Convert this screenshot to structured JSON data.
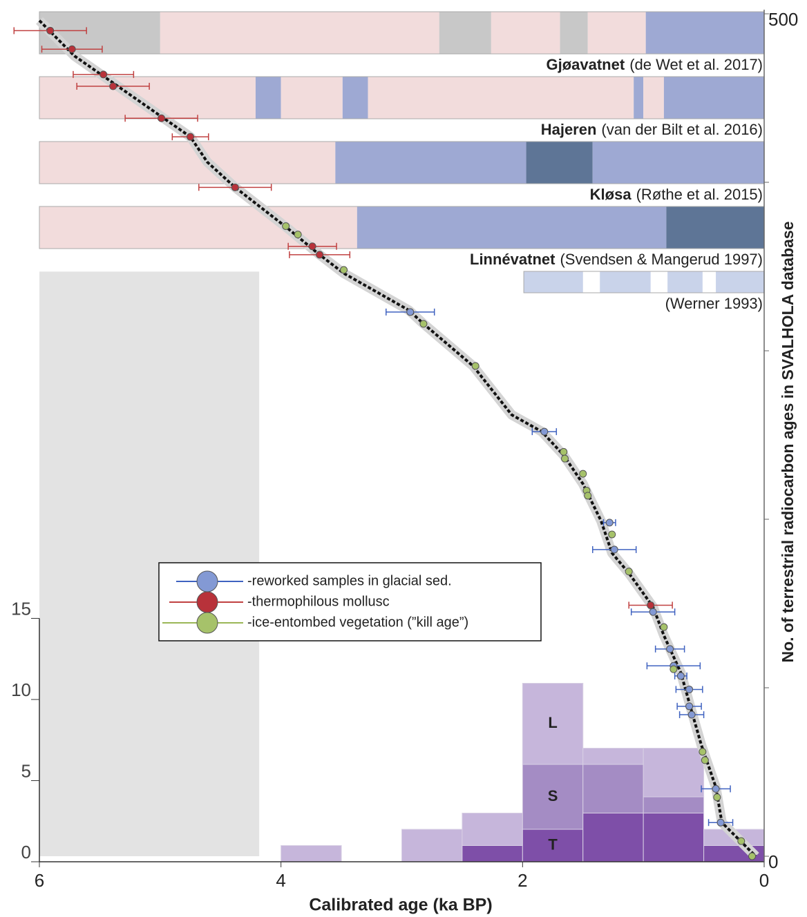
{
  "chart_data": {
    "type": "histogram",
    "xlabel": "Calibrated age (ka BP)",
    "y2label": "No. of terrestrial radiocarbon ages in SVALHOLA database",
    "xlim": [
      6,
      0
    ],
    "xticks": [
      6,
      4,
      2,
      0
    ],
    "ylim": [
      0,
      15
    ],
    "yticks": [
      0,
      5,
      10,
      15
    ],
    "y2lim": [
      0,
      500
    ],
    "y2ticks": [
      0,
      500
    ],
    "y2minor_ticks": [
      100,
      200,
      300,
      400
    ],
    "bins": [
      4,
      3.5,
      3,
      2.5,
      2,
      1.5,
      1,
      0.5,
      0
    ],
    "series": [
      {
        "name": "T",
        "color": "#7e4fa8",
        "values": [
          0,
          0,
          0,
          1,
          2,
          3,
          3,
          1
        ]
      },
      {
        "name": "S",
        "color": "#a48cc4",
        "values": [
          0,
          0,
          0,
          0,
          4,
          3,
          1,
          0
        ]
      },
      {
        "name": "L",
        "color": "#c6b6db",
        "values": [
          1,
          0,
          2,
          2,
          5,
          1,
          3,
          1
        ]
      }
    ],
    "shaded_region": {
      "x": [
        6,
        4.18
      ],
      "y2": [
        0,
        347
      ],
      "color": "#e3e3e3"
    },
    "overlays": [
      {
        "type": "line",
        "axis": "y2",
        "color": "#111",
        "x": [
          6.0,
          5.71,
          5.47,
          4.99,
          4.75,
          4.61,
          4.38,
          3.95,
          3.68,
          3.48,
          2.94,
          2.82,
          2.41,
          2.09,
          1.84,
          1.66,
          1.5,
          1.35,
          1.26,
          1.12,
          0.92,
          0.83,
          0.69,
          0.6,
          0.52,
          0.4,
          0.35,
          0.07
        ],
        "y": [
          496,
          475,
          463,
          439,
          427,
          412,
          397,
          373,
          357,
          346,
          324,
          316,
          291,
          262,
          252,
          238,
          221,
          199,
          180,
          168,
          148,
          131,
          109,
          86,
          66,
          41,
          20,
          0
        ]
      },
      {
        "type": "scatter",
        "axis": "y2",
        "name": "-reworked samples in glacial sed.",
        "color": "#8399d4",
        "error_color": "#3f62c0",
        "x": [
          2.93,
          1.82,
          1.28,
          1.24,
          0.92,
          0.78,
          0.75,
          0.69,
          0.62,
          0.62,
          0.6,
          0.4,
          0.36
        ],
        "y": [
          323,
          252,
          198,
          182,
          145,
          123,
          113,
          107,
          99,
          89,
          84,
          40,
          20
        ],
        "errors": [
          0.2,
          0.1,
          0.05,
          0.18,
          0.18,
          0.12,
          0.22,
          0.05,
          0.11,
          0.1,
          0.1,
          0.12,
          0.1
        ]
      },
      {
        "type": "scatter",
        "axis": "y2",
        "name": "-thermophilous mollusc",
        "color": "#b8323a",
        "error_color": "#c04040",
        "x": [
          5.91,
          5.73,
          5.47,
          5.39,
          4.99,
          4.75,
          4.38,
          3.74,
          3.68,
          0.94
        ],
        "y": [
          490,
          479,
          464,
          457,
          438,
          427,
          397,
          362,
          357,
          149
        ],
        "errors": [
          0.3,
          0.25,
          0.25,
          0.3,
          0.3,
          0.15,
          0.3,
          0.2,
          0.25,
          0.18
        ]
      },
      {
        "type": "scatter",
        "axis": "y2",
        "name": "-ice-entombed vegetation (”kill age”)",
        "color": "#a6c26a",
        "error_color": "#9ab655",
        "x": [
          3.96,
          3.86,
          3.48,
          2.82,
          2.39,
          1.66,
          1.65,
          1.5,
          1.47,
          1.46,
          1.26,
          1.12,
          0.83,
          0.75,
          0.51,
          0.49,
          0.39,
          0.19,
          0.1
        ],
        "y": [
          374,
          369,
          348,
          316,
          291,
          240,
          236,
          227,
          217,
          214,
          191,
          169,
          136,
          111,
          62,
          57,
          35,
          9,
          0
        ]
      }
    ],
    "records": [
      {
        "name": "Gjøavatnet",
        "citation": "(de Wet et al. 2017)",
        "segments": [
          {
            "from": 6,
            "to": 5.0,
            "color": "#c8c8c8"
          },
          {
            "from": 5.0,
            "to": 2.69,
            "color": "#f2dcdc"
          },
          {
            "from": 2.69,
            "to": 2.26,
            "color": "#c8c8c8"
          },
          {
            "from": 2.26,
            "to": 1.69,
            "color": "#f2dcdc"
          },
          {
            "from": 1.69,
            "to": 1.46,
            "color": "#c8c8c8"
          },
          {
            "from": 1.46,
            "to": 0.98,
            "color": "#f2dcdc"
          },
          {
            "from": 0.98,
            "to": 0,
            "color": "#9ea9d3"
          }
        ]
      },
      {
        "name": "Hajeren",
        "citation": "(van der Bilt et al. 2016)",
        "segments": [
          {
            "from": 6,
            "to": 4.21,
            "color": "#f2dcdc"
          },
          {
            "from": 4.21,
            "to": 4.0,
            "color": "#9ea9d3"
          },
          {
            "from": 4.0,
            "to": 3.49,
            "color": "#f2dcdc"
          },
          {
            "from": 3.49,
            "to": 3.28,
            "color": "#9ea9d3"
          },
          {
            "from": 3.28,
            "to": 1.08,
            "color": "#f2dcdc"
          },
          {
            "from": 1.08,
            "to": 1.0,
            "color": "#9ea9d3"
          },
          {
            "from": 1.0,
            "to": 0.83,
            "color": "#f2dcdc"
          },
          {
            "from": 0.83,
            "to": 0,
            "color": "#9ea9d3"
          }
        ]
      },
      {
        "name": "Kløsa",
        "citation": "(Røthe et al. 2015)",
        "segments": [
          {
            "from": 6,
            "to": 3.55,
            "color": "#f2dcdc"
          },
          {
            "from": 3.55,
            "to": 1.97,
            "color": "#9ea9d3"
          },
          {
            "from": 1.97,
            "to": 1.42,
            "color": "#5e7596"
          },
          {
            "from": 1.42,
            "to": 0,
            "color": "#9ea9d3"
          }
        ]
      },
      {
        "name": "Linnévatnet",
        "citation": "(Svendsen & Mangerud 1997)",
        "segments": [
          {
            "from": 6,
            "to": 3.37,
            "color": "#f2dcdc"
          },
          {
            "from": 3.37,
            "to": 0.81,
            "color": "#9ea9d3"
          },
          {
            "from": 0.81,
            "to": 0,
            "color": "#5e7596"
          }
        ]
      },
      {
        "citation": "(Werner 1993)",
        "segments": [
          {
            "from": 1.99,
            "to": 1.5,
            "color": "#c9d3ea"
          },
          {
            "from": 1.36,
            "to": 0.94,
            "color": "#c9d3ea"
          },
          {
            "from": 0.8,
            "to": 0.51,
            "color": "#c9d3ea"
          },
          {
            "from": 0.4,
            "to": 0,
            "color": "#c9d3ea"
          }
        ]
      }
    ]
  }
}
